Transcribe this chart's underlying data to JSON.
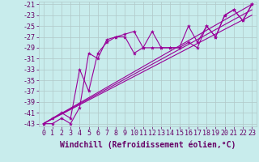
{
  "title": "",
  "xlabel": "Windchill (Refroidissement éolien,°C)",
  "ylabel": "",
  "xlim": [
    -0.5,
    23.5
  ],
  "ylim": [
    -43.5,
    -20.5
  ],
  "yticks": [
    -43,
    -41,
    -39,
    -37,
    -35,
    -33,
    -31,
    -29,
    -27,
    -25,
    -23,
    -21
  ],
  "xticks": [
    0,
    1,
    2,
    3,
    4,
    5,
    6,
    7,
    8,
    9,
    10,
    11,
    12,
    13,
    14,
    15,
    16,
    17,
    18,
    19,
    20,
    21,
    22,
    23
  ],
  "background_color": "#c8ecec",
  "grid_color": "#b0c8c8",
  "line_color": "#990099",
  "series1_x": [
    0,
    1,
    2,
    3,
    4,
    5,
    6,
    7,
    8,
    9,
    10,
    11,
    12,
    13,
    14,
    15,
    16,
    17,
    18,
    19,
    20,
    21,
    22,
    23
  ],
  "series1_y": [
    -43,
    -42,
    -41,
    -42,
    -33,
    -37,
    -30,
    -28,
    -27,
    -26.5,
    -26,
    -29,
    -26,
    -29,
    -29,
    -29,
    -28,
    -29,
    -25,
    -27,
    -23,
    -22,
    -24,
    -21
  ],
  "series2_x": [
    0,
    1,
    2,
    3,
    4,
    5,
    6,
    7,
    8,
    9,
    10,
    11,
    12,
    13,
    14,
    15,
    16,
    17,
    18,
    19,
    20,
    21,
    22,
    23
  ],
  "series2_y": [
    -43,
    -43,
    -42,
    -43,
    -40,
    -30,
    -31,
    -27.5,
    -27,
    -27,
    -30,
    -29,
    -29,
    -29,
    -29,
    -29,
    -25,
    -28,
    -25,
    -27,
    -23,
    -22,
    -24,
    -21
  ],
  "line1_x": [
    0,
    23
  ],
  "line1_y": [
    -43,
    -21
  ],
  "line2_x": [
    0,
    23
  ],
  "line2_y": [
    -43,
    -22
  ],
  "line3_x": [
    0,
    23
  ],
  "line3_y": [
    -43,
    -23
  ],
  "font_color": "#660066",
  "tick_fontsize": 6,
  "label_fontsize": 7,
  "marker_size": 3,
  "line_width": 0.8
}
